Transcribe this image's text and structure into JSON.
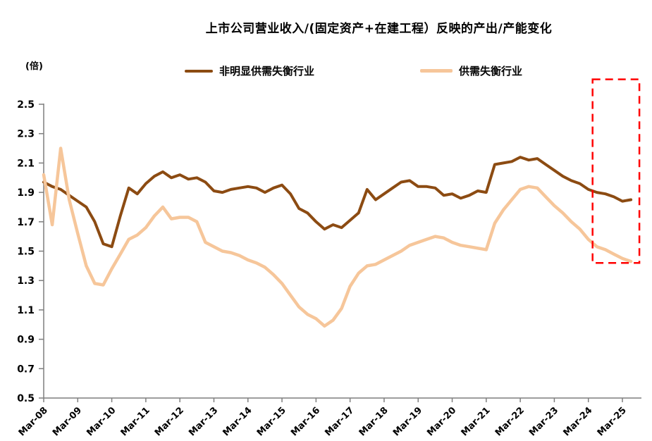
{
  "title": "上市公司营业收入/(固定资产+在建工程）反映的产出/产能变化",
  "unit_label": "(倍)",
  "legend": [
    {
      "label": "非明显供需失衡行业",
      "color": "#8c4b12"
    },
    {
      "label": "供需失衡行业",
      "color": "#f6c69a"
    }
  ],
  "chart_data": {
    "type": "line",
    "title": "上市公司营业收入/(固定资产+在建工程）反映的产出/产能变化",
    "ylabel": "(倍)",
    "ylim": [
      0.5,
      2.5
    ],
    "y_ticks": [
      2.5,
      2.3,
      2.1,
      1.9,
      1.7,
      1.5,
      1.3,
      1.1,
      0.9,
      0.7,
      0.5
    ],
    "grid": false,
    "legend_position": "top",
    "axis_color": "#7f7f7f",
    "x_tick_labels": [
      "Mar-08",
      "Mar-09",
      "Mar-10",
      "Mar-11",
      "Mar-12",
      "Mar-13",
      "Mar-14",
      "Mar-15",
      "Mar-16",
      "Mar-17",
      "Mar-18",
      "Mar-19",
      "Mar-20",
      "Mar-21",
      "Mar-22",
      "Mar-23",
      "Mar-24",
      "Mar-25"
    ],
    "x": [
      "Mar-08",
      "Jun-08",
      "Sep-08",
      "Dec-08",
      "Mar-09",
      "Jun-09",
      "Sep-09",
      "Dec-09",
      "Mar-10",
      "Jun-10",
      "Sep-10",
      "Dec-10",
      "Mar-11",
      "Jun-11",
      "Sep-11",
      "Dec-11",
      "Mar-12",
      "Jun-12",
      "Sep-12",
      "Dec-12",
      "Mar-13",
      "Jun-13",
      "Sep-13",
      "Dec-13",
      "Mar-14",
      "Jun-14",
      "Sep-14",
      "Dec-14",
      "Mar-15",
      "Jun-15",
      "Sep-15",
      "Dec-15",
      "Mar-16",
      "Jun-16",
      "Sep-16",
      "Dec-16",
      "Mar-17",
      "Jun-17",
      "Sep-17",
      "Dec-17",
      "Mar-18",
      "Jun-18",
      "Sep-18",
      "Dec-18",
      "Mar-19",
      "Jun-19",
      "Sep-19",
      "Dec-19",
      "Mar-20",
      "Jun-20",
      "Sep-20",
      "Dec-20",
      "Mar-21",
      "Jun-21",
      "Sep-21",
      "Dec-21",
      "Mar-22",
      "Jun-22",
      "Sep-22",
      "Dec-22",
      "Mar-23",
      "Jun-23",
      "Sep-23",
      "Dec-23",
      "Mar-24",
      "Jun-24",
      "Sep-24",
      "Dec-24",
      "Mar-25",
      "Jun-25"
    ],
    "series": [
      {
        "name": "非明显供需失衡行业",
        "color": "#8c4b12",
        "width": 4,
        "values": [
          1.97,
          1.94,
          1.92,
          1.88,
          1.84,
          1.8,
          1.7,
          1.55,
          1.53,
          1.74,
          1.93,
          1.89,
          1.96,
          2.01,
          2.04,
          2.0,
          2.02,
          1.99,
          2.0,
          1.97,
          1.91,
          1.9,
          1.92,
          1.93,
          1.94,
          1.93,
          1.9,
          1.93,
          1.95,
          1.89,
          1.79,
          1.76,
          1.7,
          1.65,
          1.68,
          1.66,
          1.71,
          1.76,
          1.92,
          1.85,
          1.89,
          1.93,
          1.97,
          1.98,
          1.94,
          1.94,
          1.93,
          1.88,
          1.89,
          1.86,
          1.88,
          1.91,
          1.9,
          2.09,
          2.1,
          2.11,
          2.14,
          2.12,
          2.13,
          2.09,
          2.05,
          2.01,
          1.98,
          1.96,
          1.92,
          1.9,
          1.89,
          1.87,
          1.84,
          1.85
        ]
      },
      {
        "name": "供需失衡行业",
        "color": "#f6c69a",
        "width": 4.5,
        "values": [
          2.02,
          1.68,
          2.2,
          1.85,
          1.62,
          1.4,
          1.28,
          1.27,
          1.38,
          1.48,
          1.58,
          1.61,
          1.66,
          1.74,
          1.8,
          1.72,
          1.73,
          1.73,
          1.7,
          1.56,
          1.53,
          1.5,
          1.49,
          1.47,
          1.44,
          1.42,
          1.39,
          1.34,
          1.28,
          1.2,
          1.12,
          1.07,
          1.04,
          0.99,
          1.03,
          1.11,
          1.26,
          1.35,
          1.4,
          1.41,
          1.44,
          1.47,
          1.5,
          1.54,
          1.56,
          1.58,
          1.6,
          1.59,
          1.56,
          1.54,
          1.53,
          1.52,
          1.51,
          1.69,
          1.78,
          1.85,
          1.92,
          1.94,
          1.93,
          1.87,
          1.81,
          1.76,
          1.7,
          1.65,
          1.58,
          1.53,
          1.51,
          1.48,
          1.45,
          1.43
        ]
      }
    ],
    "highlight_box": {
      "color": "#ff0000",
      "style": "dashed",
      "x_from_index": 64.5,
      "x_to_index": 70,
      "y_from": 1.42,
      "y_to": 2.67
    }
  }
}
